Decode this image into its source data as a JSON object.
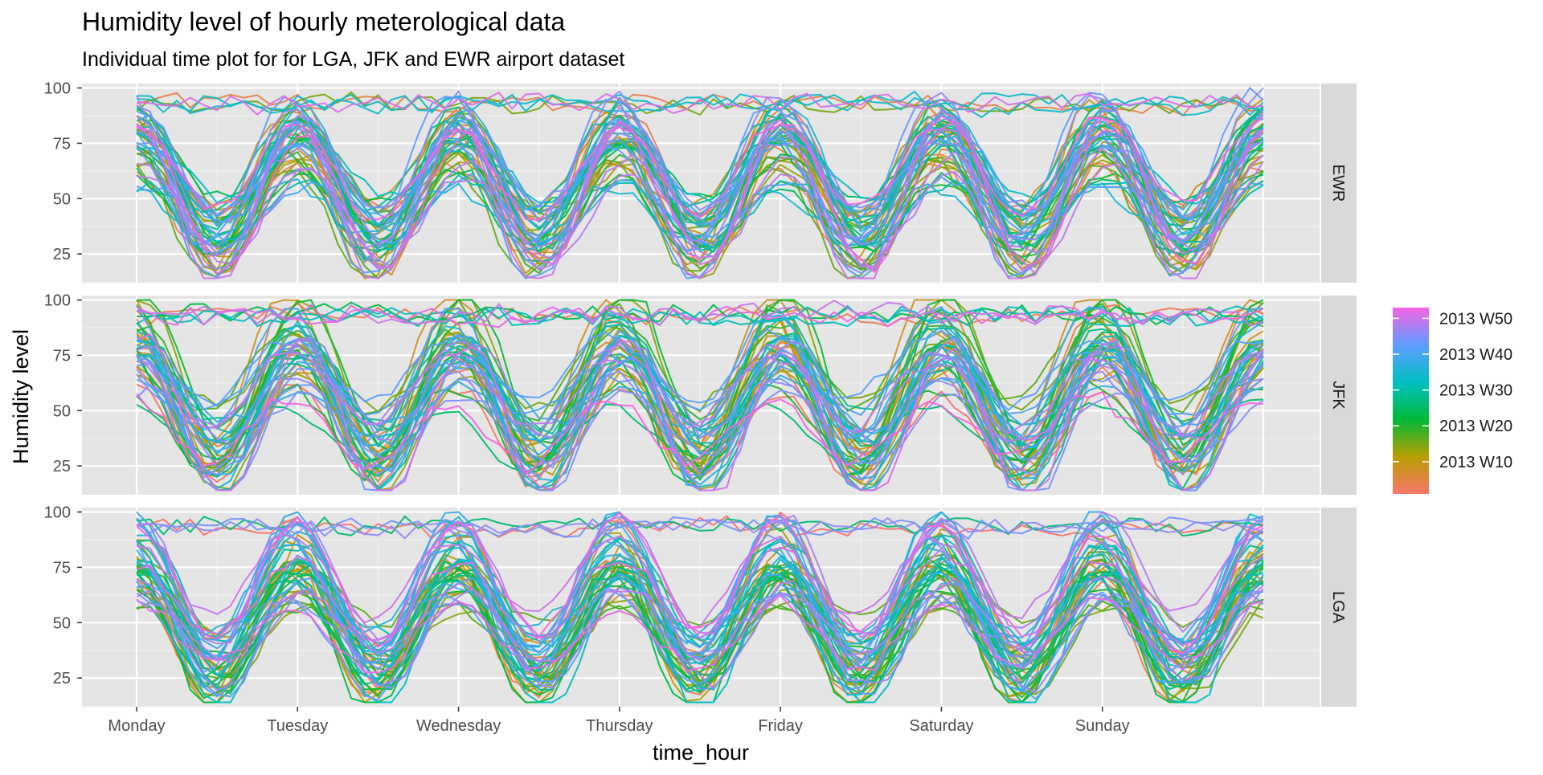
{
  "chart_data": {
    "type": "line",
    "title": "Humidity level of hourly meterological data",
    "subtitle": "Individual time plot for for LGA, JFK and EWR airport dataset",
    "xlabel": "time_hour",
    "ylabel": "Humidity level",
    "x_ticks": [
      "Monday",
      "Tuesday",
      "Wednesday",
      "Thursday",
      "Friday",
      "Saturday",
      "Sunday"
    ],
    "x_range_hours": [
      0,
      168
    ],
    "y_ticks": [
      25,
      50,
      75,
      100
    ],
    "ylim": [
      12,
      102
    ],
    "facets": [
      "EWR",
      "JFK",
      "LGA"
    ],
    "legend": {
      "position": "right",
      "type": "colorbar",
      "labels": [
        "2013 W50",
        "2013 W40",
        "2013 W30",
        "2013 W20",
        "2013 W10"
      ],
      "weeks": [
        50,
        40,
        30,
        20,
        10
      ],
      "week_range": [
        1,
        53
      ]
    },
    "series_count_per_facet": 53,
    "series_x_unit": "hours since Monday 00:00",
    "note_weekly_series": "One line per ISO week (2013 W1 to 2013 W53) in each facet, hourly humidity values overlaid by day of week; diurnal cycle with lows around midday (approx. 20-45) and highs overnight (approx. 75-100)."
  },
  "colors": {
    "panel_background": "#e5e5e5",
    "grid_major": "#ffffff",
    "strip_background": "#d9d9d9",
    "axis_text": "#4d4d4d",
    "title_text": "#000000",
    "gradient_stops": [
      "#f8766d",
      "#a3a500",
      "#00bf7d",
      "#00b0f6",
      "#e76bf3"
    ]
  }
}
